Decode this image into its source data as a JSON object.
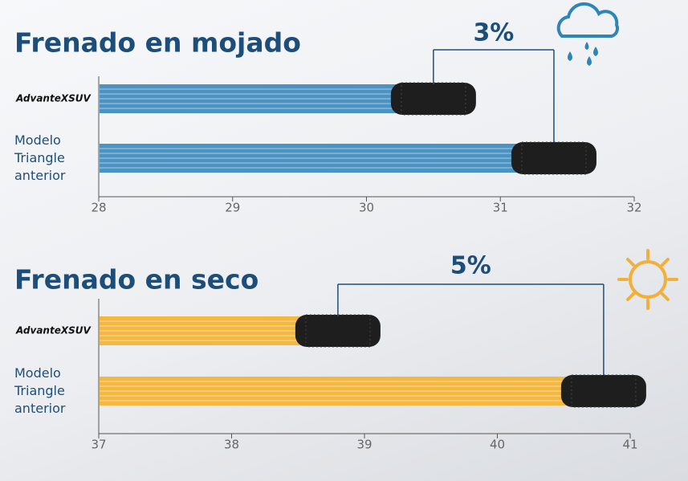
{
  "chart_data": [
    {
      "type": "bar",
      "orientation": "horizontal",
      "title": "Frenado en mojado",
      "categories": [
        "AdvanteXSUV",
        "Modelo Triangle anterior"
      ],
      "values": [
        30.5,
        31.4
      ],
      "color": "#4b93c3",
      "xlim": [
        28,
        32
      ],
      "xticks": [
        28,
        29,
        30,
        31,
        32
      ],
      "annotation": "3%"
    },
    {
      "type": "bar",
      "orientation": "horizontal",
      "title": "Frenado en seco",
      "categories": [
        "AdvanteXSUV",
        "Modelo Triangle anterior"
      ],
      "values": [
        38.8,
        40.8
      ],
      "color": "#f4b840",
      "xlim": [
        37,
        41
      ],
      "xticks": [
        37,
        38,
        39,
        40,
        41
      ],
      "annotation": "5%"
    }
  ]
}
